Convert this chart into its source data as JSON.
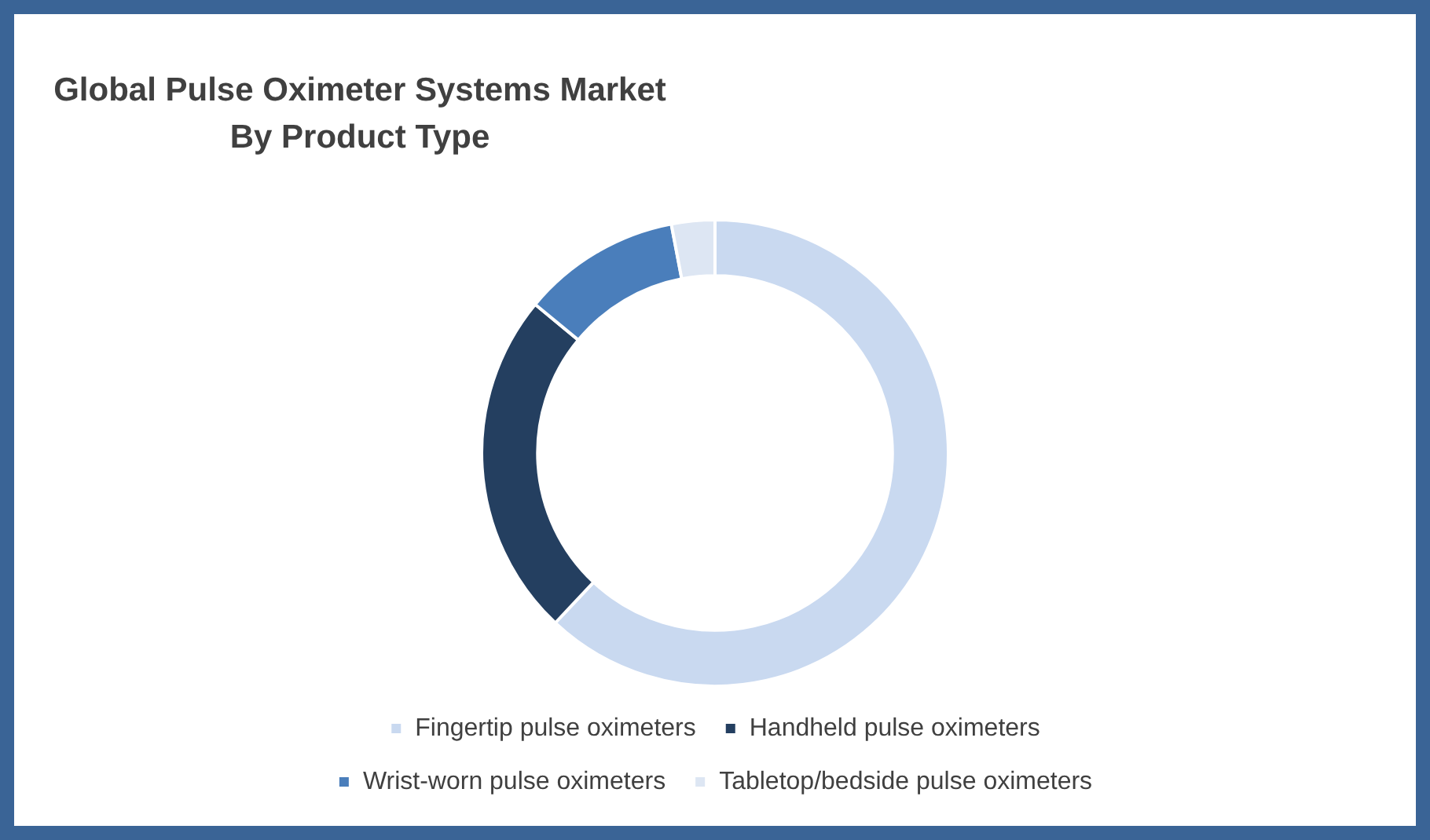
{
  "chart_data": {
    "type": "donut",
    "title": "Global Pulse Oximeter Systems Market\nBy Product Type",
    "categories": [
      "Fingertip pulse oximeters",
      "Handheld pulse oximeters",
      "Wrist-worn pulse oximeters",
      "Tabletop/bedside pulse oximeters"
    ],
    "values": [
      62,
      24,
      11,
      3
    ],
    "colors": [
      "#c9d9f0",
      "#243f60",
      "#4a7ebb",
      "#dde6f3"
    ],
    "legend": "bottom"
  }
}
